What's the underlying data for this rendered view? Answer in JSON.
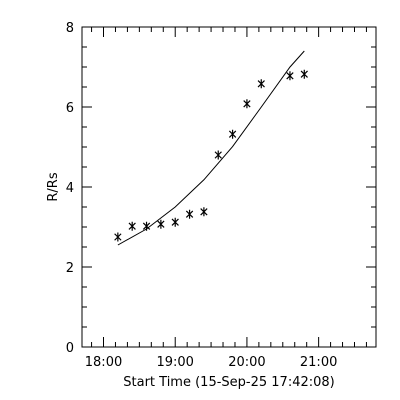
{
  "chart_data": {
    "type": "scatter",
    "xlabel": "Start Time (15-Sep-25 17:42:08)",
    "ylabel": "R/Rs",
    "xlim": [
      "17:42",
      "21:48"
    ],
    "ylim": [
      0,
      8
    ],
    "xticks": [
      "18:00",
      "19:00",
      "20:00",
      "21:00"
    ],
    "yticks": [
      0,
      2,
      4,
      6,
      8
    ],
    "grid": false,
    "points": [
      {
        "x": "18:12",
        "y": 2.75
      },
      {
        "x": "18:24",
        "y": 3.02
      },
      {
        "x": "18:36",
        "y": 3.02
      },
      {
        "x": "18:48",
        "y": 3.07
      },
      {
        "x": "19:00",
        "y": 3.12
      },
      {
        "x": "19:12",
        "y": 3.32
      },
      {
        "x": "19:24",
        "y": 3.38
      },
      {
        "x": "19:36",
        "y": 4.8
      },
      {
        "x": "19:48",
        "y": 5.32
      },
      {
        "x": "20:00",
        "y": 6.08
      },
      {
        "x": "20:12",
        "y": 6.58
      },
      {
        "x": "20:36",
        "y": 6.78
      },
      {
        "x": "20:48",
        "y": 6.82
      }
    ],
    "fit": [
      {
        "x": "18:12",
        "y": 2.55
      },
      {
        "x": "18:36",
        "y": 2.95
      },
      {
        "x": "19:00",
        "y": 3.5
      },
      {
        "x": "19:24",
        "y": 4.18
      },
      {
        "x": "19:48",
        "y": 5.01
      },
      {
        "x": "20:12",
        "y": 6.0
      },
      {
        "x": "20:36",
        "y": 7.0
      },
      {
        "x": "20:48",
        "y": 7.4
      }
    ]
  }
}
